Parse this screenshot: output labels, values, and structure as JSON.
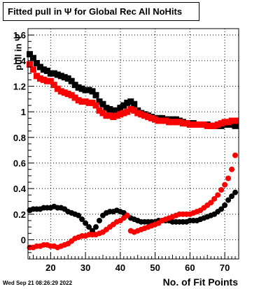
{
  "chart_data": {
    "type": "scatter",
    "title": "Fitted pull in  Ψ  for Global Rec All NoHits",
    "xlabel": "No. of Fit Points",
    "ylabel": "pull in  Ψ",
    "xlim": [
      13.5,
      74
    ],
    "ylim": [
      -0.15,
      1.65
    ],
    "xticks": [
      20,
      30,
      40,
      50,
      60,
      70
    ],
    "yticks": [
      0,
      0.2,
      0.4,
      0.6,
      0.8,
      1,
      1.2,
      1.4,
      1.6
    ],
    "xtick_labels": [
      "20",
      "30",
      "40",
      "50",
      "60",
      "70"
    ],
    "ytick_labels": [
      "0",
      "0.2",
      "0.4",
      "0.6",
      "0.8",
      "1",
      "1.2",
      "1.4",
      "1.6"
    ],
    "grid": true,
    "x": [
      14,
      15,
      16,
      17,
      18,
      19,
      20,
      21,
      22,
      23,
      24,
      25,
      26,
      27,
      28,
      29,
      30,
      31,
      32,
      33,
      34,
      35,
      36,
      37,
      38,
      39,
      40,
      41,
      42,
      43,
      44,
      45,
      46,
      47,
      48,
      49,
      50,
      51,
      52,
      53,
      54,
      55,
      56,
      57,
      58,
      59,
      60,
      61,
      62,
      63,
      64,
      65,
      66,
      67,
      68,
      69,
      70,
      71,
      72,
      73
    ],
    "series": [
      {
        "marker": "square",
        "color": "#000000",
        "values": [
          1.45,
          1.42,
          1.38,
          1.35,
          1.33,
          1.32,
          1.3,
          1.3,
          1.29,
          1.28,
          1.27,
          1.26,
          1.24,
          1.21,
          1.19,
          1.18,
          1.17,
          1.17,
          1.16,
          1.13,
          1.08,
          1.06,
          1.03,
          1.02,
          1.01,
          1.01,
          1.03,
          1.05,
          1.07,
          1.08,
          1.06,
          1.01,
          0.99,
          0.98,
          0.97,
          0.96,
          0.95,
          0.95,
          0.95,
          0.94,
          0.94,
          0.94,
          0.94,
          0.93,
          0.92,
          0.91,
          0.91,
          0.91,
          0.9,
          0.9,
          0.9,
          0.9,
          0.89,
          0.89,
          0.89,
          0.89,
          0.9,
          0.9,
          0.9,
          0.89
        ]
      },
      {
        "marker": "square",
        "color": "#ff0000",
        "values": [
          1.37,
          1.33,
          1.28,
          1.26,
          1.25,
          1.24,
          1.24,
          1.21,
          1.18,
          1.16,
          1.15,
          1.14,
          1.13,
          1.11,
          1.09,
          1.08,
          1.08,
          1.07,
          1.07,
          1.05,
          1.01,
          0.99,
          0.97,
          0.97,
          0.96,
          0.97,
          0.98,
          0.99,
          1.0,
          1.02,
          1.01,
          0.99,
          0.98,
          0.97,
          0.96,
          0.95,
          0.94,
          0.93,
          0.93,
          0.93,
          0.92,
          0.92,
          0.92,
          0.92,
          0.91,
          0.91,
          0.9,
          0.9,
          0.9,
          0.9,
          0.9,
          0.89,
          0.89,
          0.89,
          0.9,
          0.91,
          0.92,
          0.92,
          0.93,
          0.93
        ]
      },
      {
        "marker": "circle",
        "color": "#000000",
        "values": [
          0.23,
          0.24,
          0.24,
          0.24,
          0.25,
          0.25,
          0.25,
          0.26,
          0.25,
          0.25,
          0.24,
          0.22,
          0.21,
          0.2,
          0.19,
          0.16,
          0.13,
          0.1,
          0.07,
          0.1,
          0.15,
          0.19,
          0.21,
          0.22,
          0.22,
          0.23,
          0.22,
          0.21,
          0.19,
          0.17,
          0.16,
          0.15,
          0.14,
          0.14,
          0.14,
          0.14,
          0.14,
          0.15,
          0.15,
          0.15,
          0.15,
          0.14,
          0.14,
          0.14,
          0.14,
          0.14,
          0.15,
          0.15,
          0.15,
          0.16,
          0.17,
          0.18,
          0.19,
          0.2,
          0.22,
          0.24,
          0.27,
          0.31,
          0.34,
          0.37
        ]
      },
      {
        "marker": "circle",
        "color": "#ff0000",
        "values": [
          -0.06,
          -0.06,
          -0.05,
          -0.05,
          -0.04,
          -0.04,
          -0.05,
          -0.05,
          -0.06,
          -0.05,
          -0.04,
          -0.03,
          -0.01,
          0.01,
          0.02,
          0.03,
          0.03,
          0.04,
          0.04,
          0.04,
          0.05,
          0.06,
          0.08,
          0.1,
          0.12,
          0.14,
          0.15,
          0.17,
          0.19,
          0.07,
          0.06,
          0.07,
          0.08,
          0.09,
          0.1,
          0.11,
          0.12,
          0.13,
          0.15,
          0.16,
          0.17,
          0.18,
          0.19,
          0.2,
          0.2,
          0.2,
          0.2,
          0.21,
          0.22,
          0.23,
          0.25,
          0.27,
          0.29,
          0.32,
          0.35,
          0.39,
          0.43,
          0.48,
          0.55,
          0.66
        ]
      }
    ]
  },
  "footer": {
    "datestamp": "Wed Sep 21 08:26:29 2022"
  }
}
